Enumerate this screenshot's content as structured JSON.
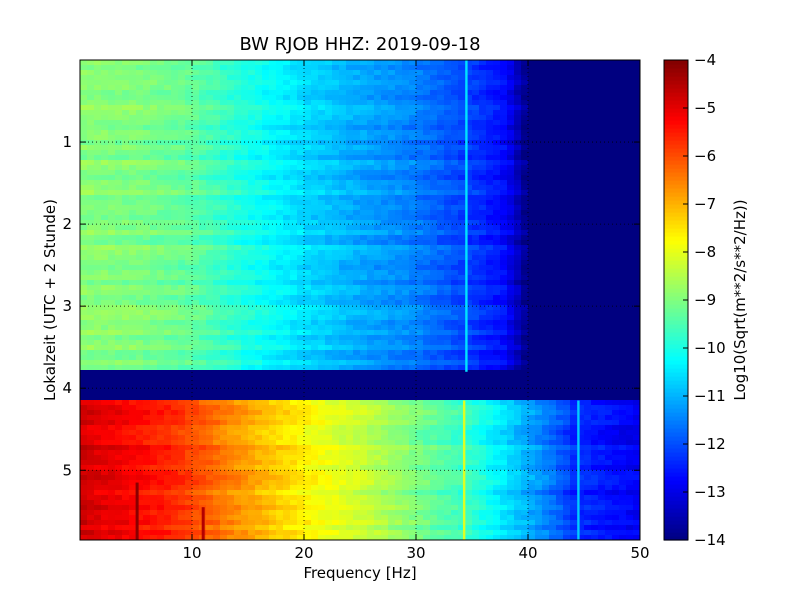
{
  "chart_data": {
    "type": "heatmap",
    "title": "BW RJOB HHZ: 2019-09-18",
    "xlabel": "Frequency [Hz]",
    "ylabel": "Lokalzeit (UTC + 2 Stunde)",
    "colorbar_label": "Log10(Sqrt(m**2/s**2/Hz))",
    "xlim": [
      0,
      50
    ],
    "ylim": [
      0,
      5.85
    ],
    "y_inverted": true,
    "grid": true,
    "colormap": "jet",
    "clim": [
      -14,
      -4
    ],
    "xticks": [
      10,
      20,
      30,
      40,
      50
    ],
    "xtick_labels": [
      "10",
      "20",
      "30",
      "40",
      "50"
    ],
    "yticks": [
      1,
      2,
      3,
      4,
      5
    ],
    "ytick_labels": [
      "1",
      "2",
      "3",
      "4",
      "5"
    ],
    "cticks": [
      -14,
      -13,
      -12,
      -11,
      -10,
      -9,
      -8,
      -7,
      -6,
      -5,
      -4
    ],
    "ctick_labels": [
      "−14",
      "−13",
      "−12",
      "−11",
      "−10",
      "−9",
      "−8",
      "−7",
      "−6",
      "−5",
      "−4"
    ],
    "gap": {
      "start": 3.8,
      "end": 4.15,
      "value": -14
    },
    "profiles": {
      "before_gap": {
        "freq": [
          0,
          5,
          10,
          15,
          20,
          25,
          30,
          35,
          38,
          40,
          50
        ],
        "value": [
          -8.9,
          -9.0,
          -9.3,
          -10.0,
          -10.6,
          -11.1,
          -11.5,
          -12.2,
          -12.7,
          -14,
          -14
        ]
      },
      "after_gap": {
        "freq": [
          0,
          3,
          8,
          13,
          17,
          21,
          26,
          31,
          35,
          39,
          42,
          44,
          46,
          50
        ],
        "value": [
          -4.8,
          -5.1,
          -5.6,
          -6.5,
          -7.2,
          -7.8,
          -8.4,
          -9.2,
          -9.8,
          -10.8,
          -11.6,
          -12.3,
          -12.5,
          -12.9
        ]
      }
    },
    "features": [
      {
        "kind": "resonance_line",
        "freq": 34.5,
        "segment": "before_gap"
      },
      {
        "kind": "resonance_line",
        "freq": 34.3,
        "segment": "after_gap"
      },
      {
        "kind": "resonance_line",
        "freq": 44.5,
        "segment": "after_gap"
      },
      {
        "kind": "spike",
        "freq": 5.1,
        "start": 5.15,
        "end": 5.85,
        "value": -4.1
      },
      {
        "kind": "spike",
        "freq": 11.0,
        "start": 5.45,
        "end": 5.85,
        "value": -4.5
      }
    ]
  }
}
